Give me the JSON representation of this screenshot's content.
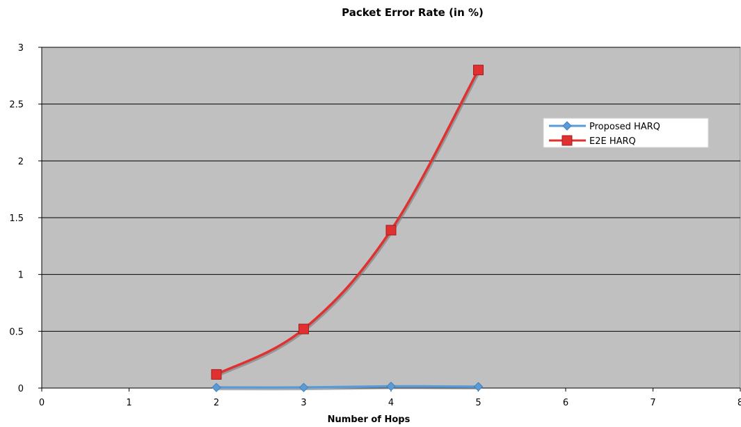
{
  "chart_data": {
    "type": "line",
    "title": "Packet Error Rate (in %)",
    "xlabel": "Number of Hops",
    "ylabel": "",
    "xlim": [
      0,
      8
    ],
    "ylim": [
      0,
      3
    ],
    "x_ticks": [
      "0",
      "1",
      "2",
      "3",
      "4",
      "5",
      "6",
      "7",
      "8"
    ],
    "y_ticks": [
      "0",
      "0.5",
      "1",
      "1.5",
      "2",
      "2.5",
      "3"
    ],
    "grid": "horizontal",
    "legend_position": "right",
    "plot_background": "#c0c0c0",
    "series": [
      {
        "name": "Proposed HARQ",
        "marker": "diamond",
        "color": "#5b9bd5",
        "points": [
          {
            "x": 2,
            "y": 0.005
          },
          {
            "x": 3,
            "y": 0.005
          },
          {
            "x": 4,
            "y": 0.015
          },
          {
            "x": 5,
            "y": 0.012
          }
        ]
      },
      {
        "name": "E2E HARQ",
        "marker": "square",
        "color": "#e03030",
        "points": [
          {
            "x": 2,
            "y": 0.12
          },
          {
            "x": 3,
            "y": 0.52
          },
          {
            "x": 4,
            "y": 1.39
          },
          {
            "x": 5,
            "y": 2.8
          }
        ]
      }
    ]
  }
}
